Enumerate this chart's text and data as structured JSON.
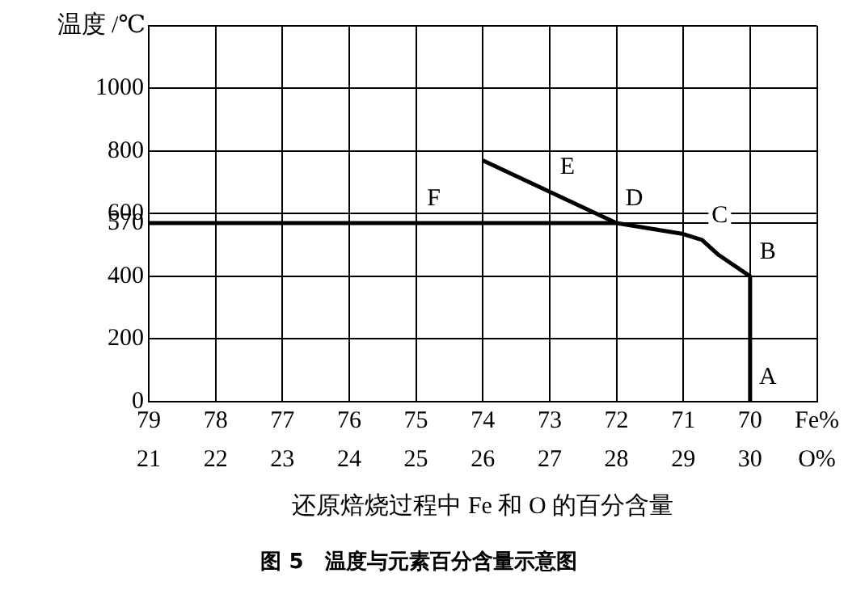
{
  "chart_data": {
    "type": "line",
    "title": "图 5　温度与元素百分含量示意图",
    "xlabel": "还原焙烧过程中 Fe 和 O 的百分含量",
    "ylabel": "温度 /℃",
    "xlim": [
      79,
      69
    ],
    "xticks": [
      79,
      78,
      77,
      76,
      75,
      74,
      73,
      72,
      71,
      70,
      {
        "value": 69,
        "label": "Fe%"
      }
    ],
    "x2lim": [
      21,
      31
    ],
    "x2ticks": [
      21,
      22,
      23,
      24,
      25,
      26,
      27,
      28,
      29,
      30,
      {
        "value": 31,
        "label": "O%"
      }
    ],
    "ylim": [
      0,
      1200
    ],
    "yticks": [
      0,
      200,
      400,
      570,
      600,
      800,
      1000,
      {
        "value": 1200,
        "label": null
      }
    ],
    "grid": true,
    "legend": false,
    "marker": "none",
    "line_style": "solid",
    "series": [
      {
        "color": "#000000",
        "x": [
          70,
          70,
          70.47,
          70.72,
          71,
          72,
          79
        ],
        "values": [
          0,
          400,
          468,
          516,
          535,
          570,
          570
        ]
      },
      {
        "color": "#000000",
        "x": [
          74,
          72
        ],
        "values": [
          770,
          570
        ]
      }
    ],
    "annotations": [
      {
        "text": "A",
        "x": 70,
        "y": 0
      },
      {
        "text": "B",
        "x": 70,
        "y": 400
      },
      {
        "text": "C",
        "x": 70.72,
        "y": 516
      },
      {
        "text": "D",
        "x": 72,
        "y": 570
      },
      {
        "text": "E",
        "x": 73,
        "y": 670
      },
      {
        "text": "F",
        "x": 75,
        "y": 570
      }
    ]
  }
}
